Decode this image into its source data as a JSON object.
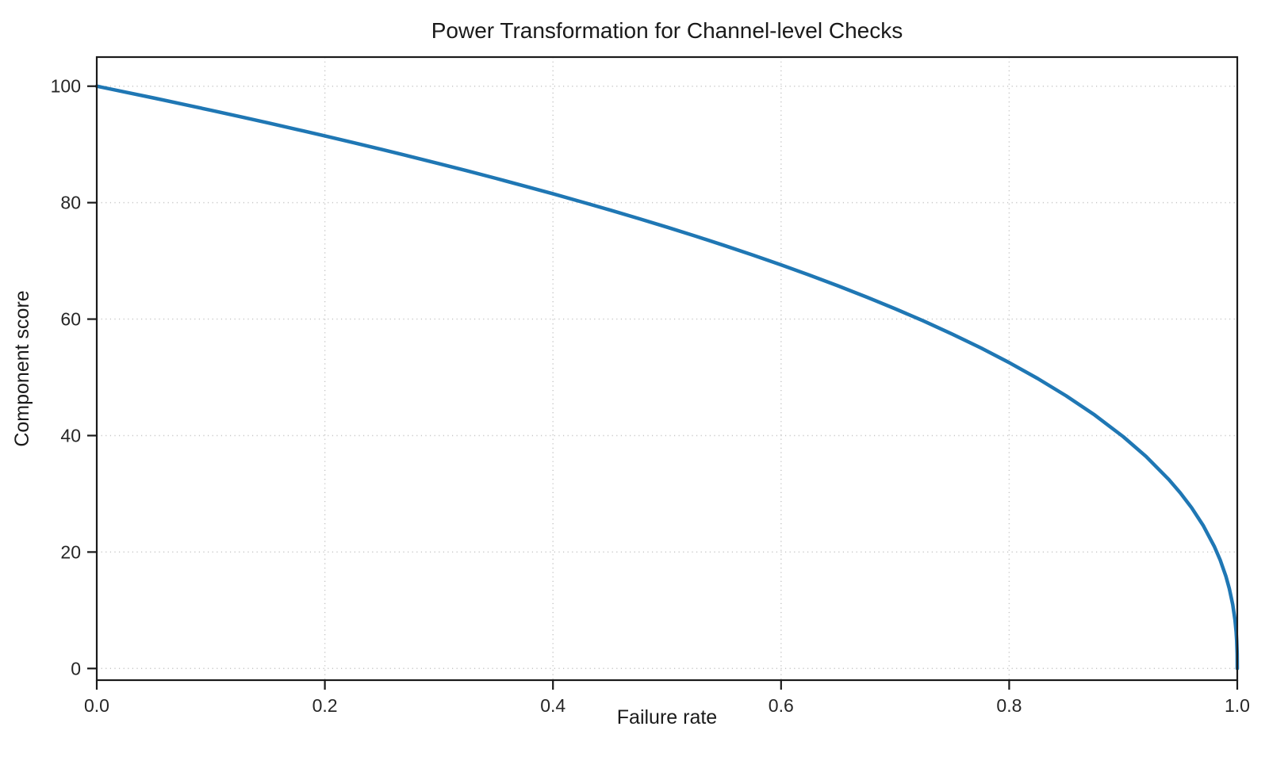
{
  "chart_data": {
    "type": "line",
    "title": "Power Transformation for Channel-level Checks",
    "xlabel": "Failure rate",
    "ylabel": "Component score",
    "xlim": [
      0.0,
      1.0
    ],
    "ylim": [
      -2,
      105
    ],
    "x_ticks": [
      {
        "value": 0.0,
        "label": "0.0"
      },
      {
        "value": 0.2,
        "label": "0.2"
      },
      {
        "value": 0.4,
        "label": "0.4"
      },
      {
        "value": 0.6,
        "label": "0.6"
      },
      {
        "value": 0.8,
        "label": "0.8"
      },
      {
        "value": 1.0,
        "label": "1.0"
      }
    ],
    "y_ticks": [
      {
        "value": 0,
        "label": "0"
      },
      {
        "value": 20,
        "label": "20"
      },
      {
        "value": 40,
        "label": "40"
      },
      {
        "value": 60,
        "label": "60"
      },
      {
        "value": 80,
        "label": "80"
      },
      {
        "value": 100,
        "label": "100"
      }
    ],
    "grid": "dotted",
    "legend_position": "none",
    "series": [
      {
        "name": "power-curve",
        "formula": "y = 100 * (1 - x)^0.4",
        "color": "#1f77b4",
        "line_width": 4.5,
        "points": [
          [
            0,
            100
          ],
          [
            0.025,
            98.99
          ],
          [
            0.05,
            97.97
          ],
          [
            0.075,
            96.93
          ],
          [
            0.1,
            95.87
          ],
          [
            0.125,
            94.8
          ],
          [
            0.15,
            93.71
          ],
          [
            0.175,
            92.59
          ],
          [
            0.2,
            91.46
          ],
          [
            0.225,
            90.31
          ],
          [
            0.25,
            89.13
          ],
          [
            0.275,
            87.93
          ],
          [
            0.3,
            86.7
          ],
          [
            0.325,
            85.45
          ],
          [
            0.35,
            84.17
          ],
          [
            0.375,
            82.86
          ],
          [
            0.4,
            81.52
          ],
          [
            0.425,
            80.14
          ],
          [
            0.45,
            78.73
          ],
          [
            0.475,
            77.28
          ],
          [
            0.5,
            75.79
          ],
          [
            0.525,
            74.25
          ],
          [
            0.55,
            72.66
          ],
          [
            0.575,
            71.02
          ],
          [
            0.6,
            69.31
          ],
          [
            0.625,
            67.55
          ],
          [
            0.65,
            65.71
          ],
          [
            0.675,
            63.79
          ],
          [
            0.7,
            61.78
          ],
          [
            0.725,
            59.67
          ],
          [
            0.75,
            57.43
          ],
          [
            0.775,
            55.07
          ],
          [
            0.8,
            52.53
          ],
          [
            0.825,
            49.8
          ],
          [
            0.85,
            46.82
          ],
          [
            0.875,
            43.53
          ],
          [
            0.9,
            39.81
          ],
          [
            0.92,
            36.41
          ],
          [
            0.94,
            32.45
          ],
          [
            0.95,
            30.17
          ],
          [
            0.96,
            27.6
          ],
          [
            0.97,
            24.6
          ],
          [
            0.98,
            20.91
          ],
          [
            0.985,
            18.64
          ],
          [
            0.99,
            15.85
          ],
          [
            0.993,
            13.74
          ],
          [
            0.996,
            10.99
          ],
          [
            0.998,
            8.33
          ],
          [
            0.999,
            6.31
          ],
          [
            0.9995,
            4.78
          ],
          [
            0.9999,
            2.51
          ],
          [
            1,
            0
          ]
        ]
      }
    ],
    "colors": {
      "line": "#1f77b4",
      "grid": "#c7c7c7",
      "axis": "#1a1a1a",
      "text": "#1a1a1a",
      "background": "#ffffff"
    }
  }
}
